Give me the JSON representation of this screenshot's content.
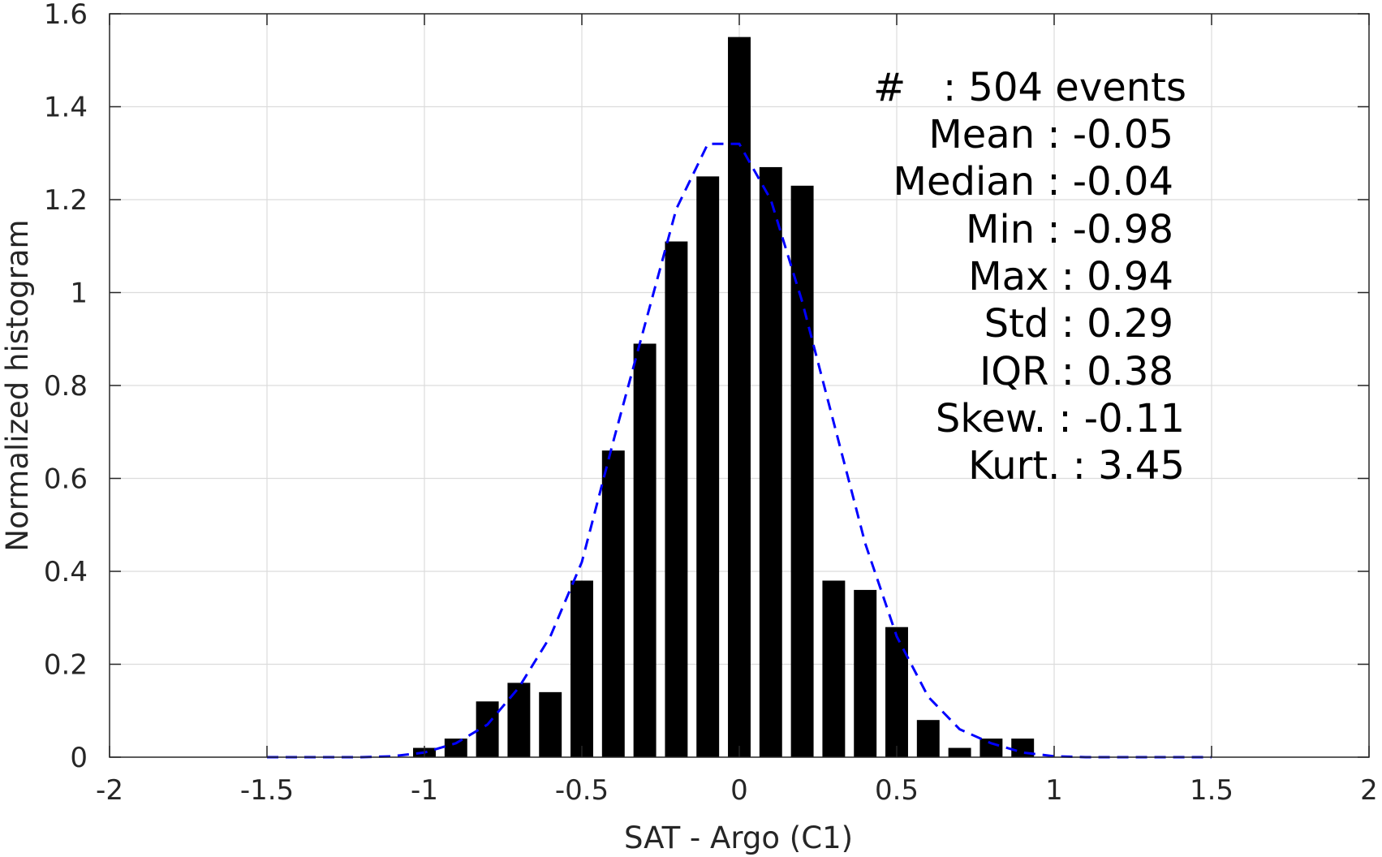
{
  "chart_data": {
    "type": "bar",
    "xlabel": "SAT - Argo (C1)",
    "ylabel": "Normalized histogram",
    "xlim": [
      -2,
      2
    ],
    "ylim": [
      0,
      1.6
    ],
    "x_ticks": [
      "-2",
      "-1.5",
      "-1",
      "-0.5",
      "0",
      "0.5",
      "1",
      "1.5",
      "2"
    ],
    "y_ticks": [
      "0",
      "0.2",
      "0.4",
      "0.6",
      "0.8",
      "1",
      "1.2",
      "1.4",
      "1.6"
    ],
    "grid": true,
    "bar_color": "#000000",
    "fit_color": "#0000ff",
    "bars": {
      "x": [
        -1.0,
        -0.9,
        -0.8,
        -0.7,
        -0.6,
        -0.5,
        -0.4,
        -0.3,
        -0.2,
        -0.1,
        0.0,
        0.1,
        0.2,
        0.3,
        0.4,
        0.5,
        0.6,
        0.7,
        0.8,
        0.9
      ],
      "values": [
        0.02,
        0.04,
        0.12,
        0.16,
        0.14,
        0.38,
        0.66,
        0.89,
        1.11,
        1.25,
        1.55,
        1.27,
        1.23,
        0.38,
        0.36,
        0.28,
        0.08,
        0.02,
        0.04,
        0.04
      ]
    },
    "fit_curve": {
      "style": "dashed",
      "x": [
        -1.5,
        -1.4,
        -1.3,
        -1.2,
        -1.1,
        -1.0,
        -0.9,
        -0.8,
        -0.7,
        -0.6,
        -0.5,
        -0.4,
        -0.3,
        -0.2,
        -0.1,
        0.0,
        0.1,
        0.2,
        0.3,
        0.4,
        0.5,
        0.6,
        0.7,
        0.8,
        0.9,
        1.0,
        1.1,
        1.2,
        1.3,
        1.4,
        1.5
      ],
      "y": [
        0.0,
        0.0,
        0.0,
        0.0,
        0.002,
        0.01,
        0.03,
        0.07,
        0.15,
        0.26,
        0.42,
        0.68,
        0.93,
        1.18,
        1.32,
        1.32,
        1.2,
        0.98,
        0.72,
        0.46,
        0.26,
        0.13,
        0.06,
        0.03,
        0.01,
        0.002,
        0.0,
        0.0,
        0.0,
        0.0,
        0.0
      ]
    },
    "annotations": [
      "#   : 504 events",
      "Mean : -0.05",
      "Median : -0.04",
      "Min : -0.98",
      "Max : 0.94",
      "Std : 0.29",
      "IQR : 0.38",
      "Skew. : -0.11",
      "Kurt. : 3.45"
    ]
  }
}
